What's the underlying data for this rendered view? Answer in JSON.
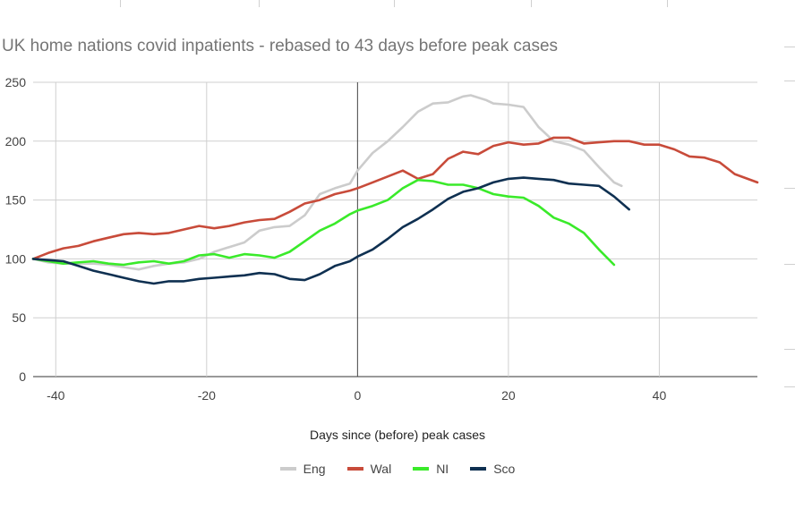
{
  "chart_data": {
    "type": "line",
    "title": "UK home nations covid inpatients - rebased to 43 days before peak cases",
    "xlabel": "Days since (before) peak cases",
    "ylabel": "",
    "xlim": [
      -43,
      53
    ],
    "ylim": [
      0,
      250
    ],
    "xticks": [
      -40,
      -20,
      0,
      20,
      40
    ],
    "yticks": [
      0,
      50,
      100,
      150,
      200,
      250
    ],
    "grid": true,
    "legend": "bottom",
    "series": [
      {
        "name": "Eng",
        "color": "#cccccc",
        "x": [
          -43,
          -41,
          -39,
          -37,
          -35,
          -33,
          -31,
          -29,
          -27,
          -25,
          -23,
          -21,
          -19,
          -17,
          -15,
          -13,
          -11,
          -9,
          -7,
          -5,
          -3,
          -1,
          0,
          2,
          4,
          6,
          8,
          10,
          12,
          14,
          15,
          16,
          17,
          18,
          20,
          22,
          24,
          26,
          28,
          30,
          32,
          34,
          35
        ],
        "y": [
          100,
          97,
          96,
          96,
          96,
          95,
          93,
          91,
          94,
          96,
          97,
          100,
          106,
          110,
          114,
          124,
          127,
          128,
          137,
          155,
          160,
          164,
          175,
          190,
          200,
          212,
          225,
          232,
          233,
          238,
          239,
          237,
          235,
          232,
          231,
          229,
          212,
          200,
          197,
          192,
          178,
          165,
          162
        ]
      },
      {
        "name": "Wal",
        "color": "#c84b3a",
        "x": [
          -43,
          -41,
          -39,
          -37,
          -35,
          -33,
          -31,
          -29,
          -27,
          -25,
          -23,
          -21,
          -19,
          -17,
          -15,
          -13,
          -11,
          -9,
          -7,
          -5,
          -3,
          -1,
          0,
          2,
          4,
          6,
          8,
          10,
          12,
          14,
          16,
          18,
          20,
          22,
          24,
          26,
          28,
          30,
          32,
          34,
          36,
          38,
          40,
          42,
          44,
          46,
          48,
          50,
          53
        ],
        "y": [
          100,
          105,
          109,
          111,
          115,
          118,
          121,
          122,
          121,
          122,
          125,
          128,
          126,
          128,
          131,
          133,
          134,
          140,
          147,
          150,
          155,
          158,
          160,
          165,
          170,
          175,
          168,
          172,
          185,
          191,
          189,
          196,
          199,
          197,
          198,
          203,
          203,
          198,
          199,
          200,
          200,
          197,
          197,
          193,
          187,
          186,
          182,
          172,
          165
        ]
      },
      {
        "name": "NI",
        "color": "#3aea2a",
        "x": [
          -43,
          -41,
          -39,
          -37,
          -35,
          -33,
          -31,
          -29,
          -27,
          -25,
          -23,
          -21,
          -19,
          -17,
          -15,
          -13,
          -11,
          -9,
          -7,
          -5,
          -3,
          -1,
          0,
          2,
          4,
          6,
          8,
          10,
          12,
          14,
          16,
          18,
          20,
          22,
          24,
          26,
          28,
          30,
          32,
          34
        ],
        "y": [
          100,
          98,
          96,
          97,
          98,
          96,
          95,
          97,
          98,
          96,
          98,
          103,
          104,
          101,
          104,
          103,
          101,
          106,
          115,
          124,
          130,
          138,
          141,
          145,
          150,
          160,
          167,
          166,
          163,
          163,
          160,
          155,
          153,
          152,
          145,
          135,
          130,
          122,
          108,
          95
        ]
      },
      {
        "name": "Sco",
        "color": "#0f3051",
        "x": [
          -43,
          -41,
          -39,
          -37,
          -35,
          -33,
          -31,
          -29,
          -27,
          -25,
          -23,
          -21,
          -19,
          -17,
          -15,
          -13,
          -11,
          -9,
          -7,
          -5,
          -3,
          -1,
          0,
          2,
          4,
          6,
          8,
          10,
          12,
          14,
          16,
          18,
          20,
          22,
          24,
          26,
          28,
          30,
          32,
          34,
          36
        ],
        "y": [
          100,
          99,
          98,
          94,
          90,
          87,
          84,
          81,
          79,
          81,
          81,
          83,
          84,
          85,
          86,
          88,
          87,
          83,
          82,
          87,
          94,
          98,
          102,
          108,
          117,
          127,
          134,
          142,
          151,
          157,
          160,
          165,
          168,
          169,
          168,
          167,
          164,
          163,
          162,
          153,
          142
        ]
      }
    ]
  }
}
